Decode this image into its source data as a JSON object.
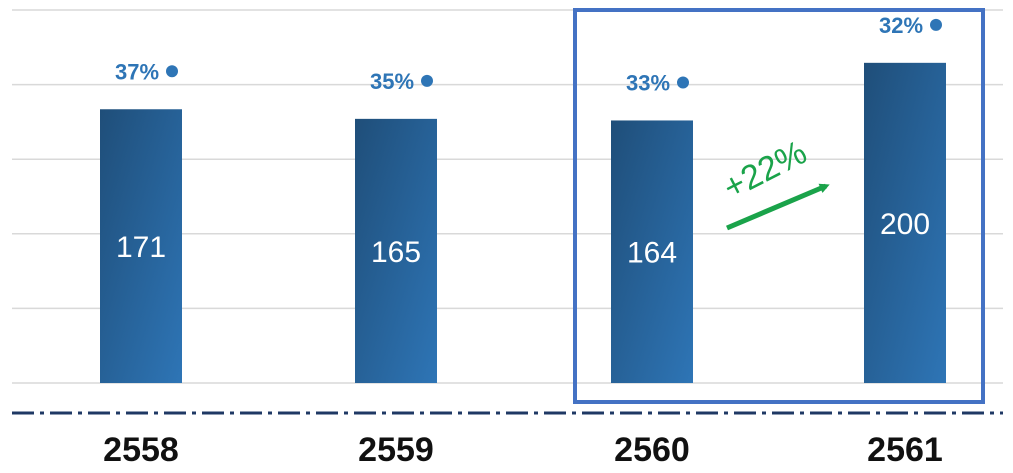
{
  "chart_data": {
    "type": "bar",
    "categories": [
      "2558",
      "2559",
      "2560",
      "2561"
    ],
    "values": [
      171,
      165,
      164,
      200
    ],
    "percent_labels": [
      "37%",
      "35%",
      "33%",
      "32%"
    ],
    "ylim": [
      0,
      233
    ],
    "grid": true,
    "highlight": {
      "categories": [
        "2560",
        "2561"
      ],
      "color": "#4472C4"
    },
    "annotation": {
      "text": "+22%",
      "color": "#1AA34A"
    },
    "colors": {
      "bar_dark": "#1F4E79",
      "bar_light": "#2E75B6",
      "percent": "#2E75B6",
      "grid": "#D9D9D9",
      "axis_dash": "#1F3864"
    }
  }
}
